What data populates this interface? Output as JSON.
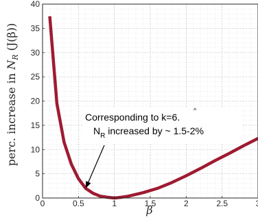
{
  "chart_data": {
    "type": "line",
    "ylabel_prefix": "perc. increase in ",
    "ylabel_math": "N",
    "ylabel_sub": "R",
    "ylabel_suffix": " (J(β))",
    "xlabel": "β",
    "xlim": [
      0,
      3
    ],
    "ylim": [
      0,
      40
    ],
    "xticks": [
      0,
      0.5,
      1,
      1.5,
      2,
      2.5,
      3
    ],
    "xtick_labels": [
      "0",
      "0.5",
      "1",
      "1.5",
      "2",
      "2.5",
      "3"
    ],
    "yticks": [
      0,
      5,
      10,
      15,
      20,
      25,
      30,
      35,
      40
    ],
    "ytick_labels": [
      "0",
      "5",
      "10",
      "15",
      "20",
      "25",
      "30",
      "35",
      "40"
    ],
    "grid": true,
    "minor_grid": true,
    "series": [
      {
        "color": "#9e1b32",
        "x": [
          0.1,
          0.2,
          0.3,
          0.4,
          0.5,
          0.6,
          0.7,
          0.8,
          0.9,
          1.0,
          1.1,
          1.2,
          1.4,
          1.6,
          1.8,
          2.0,
          2.2,
          2.4,
          2.6,
          2.8,
          3.0
        ],
        "y": [
          37.5,
          19.5,
          11.5,
          7.0,
          4.0,
          2.0,
          1.0,
          0.4,
          0.15,
          0.0,
          0.15,
          0.4,
          1.1,
          2.0,
          3.2,
          4.6,
          6.1,
          7.7,
          9.2,
          10.8,
          12.3
        ]
      }
    ],
    "annotation": {
      "line1_prefix": "Corresponding to  ",
      "line1_kappa": "k",
      "line1_rest": "=6.",
      "line2_main": "N",
      "line2_sub": "R",
      "line2_rest": " increased by ~ 1.5-2%",
      "arrow_to": {
        "x": 0.6,
        "y": 2.0
      }
    }
  }
}
